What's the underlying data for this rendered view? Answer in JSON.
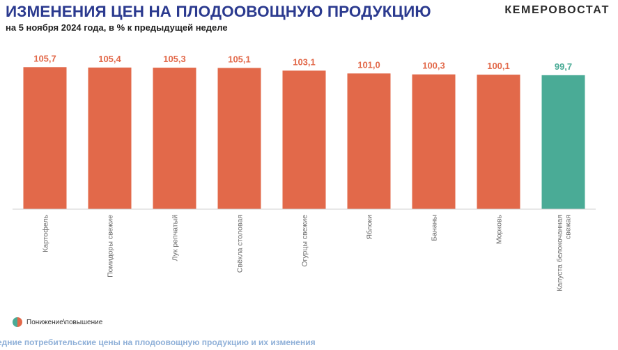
{
  "header": {
    "title": "ИЗМЕНЕНИЯ ЦЕН НА ПЛОДООВОЩНУЮ ПРОДУКЦИЮ",
    "subtitle": "на 5 ноября 2024 года, в % к предыдущей неделе",
    "brand": "КЕМЕРОВОСТАТ"
  },
  "legend": {
    "label": "Понижение\\повышение",
    "colors": [
      "#4aab96",
      "#e2694a"
    ]
  },
  "footer": {
    "text": "едние потребительские цены на плодоовощную продукцию и их изменения"
  },
  "colors": {
    "increase": "#e2694a",
    "decrease": "#4aab96",
    "value_label_increase": "#e2694a",
    "value_label_decrease": "#4aab96",
    "category_label": "#6b6b6b",
    "axis": "#d0d0d0"
  },
  "chart_data": {
    "type": "bar",
    "categories": [
      "Картофель",
      "Помидоры свежие",
      "Лук репчатый",
      "Свёкла столовая",
      "Огурцы свежие",
      "Яблоки",
      "Бананы",
      "Морковь",
      "Капуста белокочанная\nсвежая"
    ],
    "values": [
      105.7,
      105.4,
      105.3,
      105.1,
      103.1,
      101.0,
      100.3,
      100.1,
      99.7
    ],
    "value_labels": [
      "105,7",
      "105,4",
      "105,3",
      "105,1",
      "103,1",
      "101,0",
      "100,3",
      "100,1",
      "99,7"
    ],
    "baseline": 0,
    "ylim": [
      0,
      110
    ],
    "grid": false,
    "legend_position": "bottom-left"
  }
}
